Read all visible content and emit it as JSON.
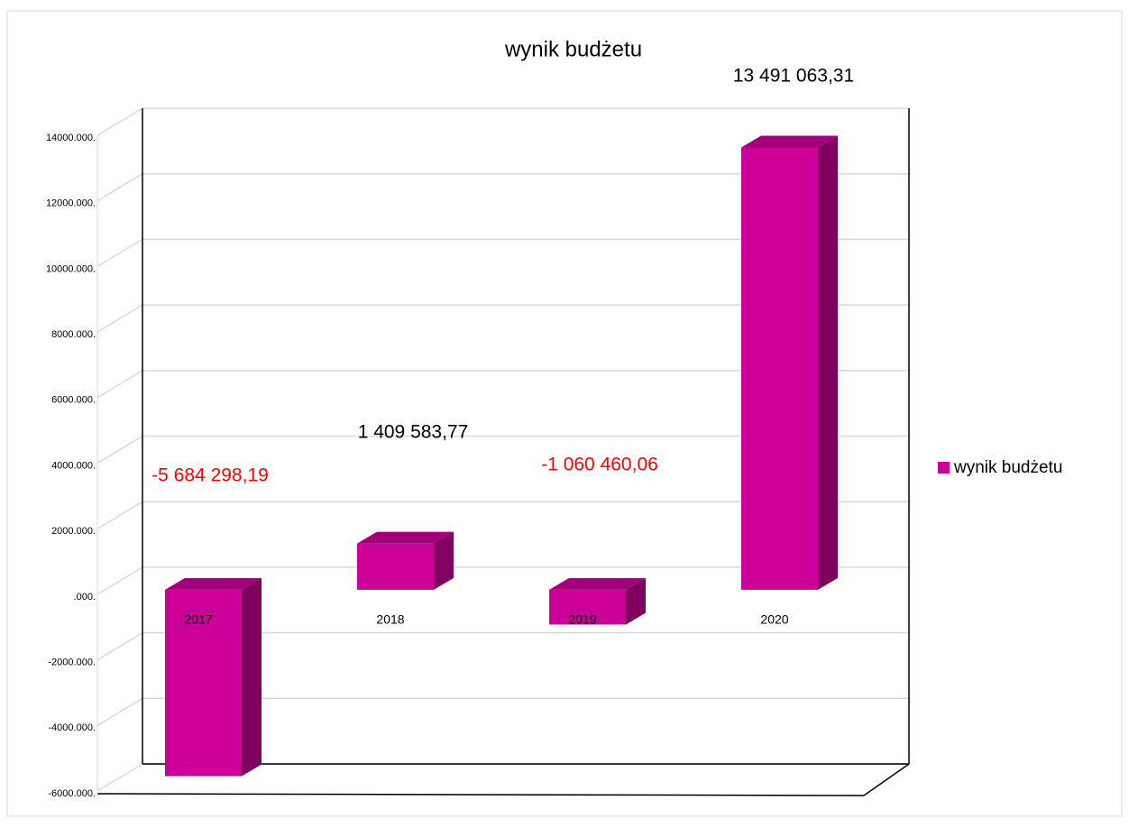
{
  "chart_data": {
    "type": "bar3d",
    "title": "wynik budżetu",
    "categories": [
      "2017",
      "2018",
      "2019",
      "2020"
    ],
    "series": [
      {
        "name": "wynik budżetu",
        "color": "#cc0099",
        "values": [
          -5684298.19,
          1409583.77,
          -1060460.06,
          13491063.31
        ],
        "value_labels": [
          "-5 684 298,19",
          "1 409 583,77",
          "-1 060 460,06",
          "13 491 063,31"
        ],
        "value_label_colors": [
          "#ff0000",
          "#000000",
          "#ff0000",
          "#000000"
        ]
      }
    ],
    "ylim": [
      -6000000,
      14000000
    ],
    "yticks": [
      {
        "value": -6000000,
        "label": "-6000.000."
      },
      {
        "value": -4000000,
        "label": "-4000.000."
      },
      {
        "value": -2000000,
        "label": "-2000.000."
      },
      {
        "value": 0,
        "label": ".000."
      },
      {
        "value": 2000000,
        "label": "2000.000."
      },
      {
        "value": 4000000,
        "label": "4000.000."
      },
      {
        "value": 6000000,
        "label": "6000.000."
      },
      {
        "value": 8000000,
        "label": "8000.000."
      },
      {
        "value": 10000000,
        "label": "10000.000."
      },
      {
        "value": 12000000,
        "label": "12000.000."
      },
      {
        "value": 14000000,
        "label": "14000.000."
      }
    ],
    "grid": true,
    "legend": "right"
  }
}
